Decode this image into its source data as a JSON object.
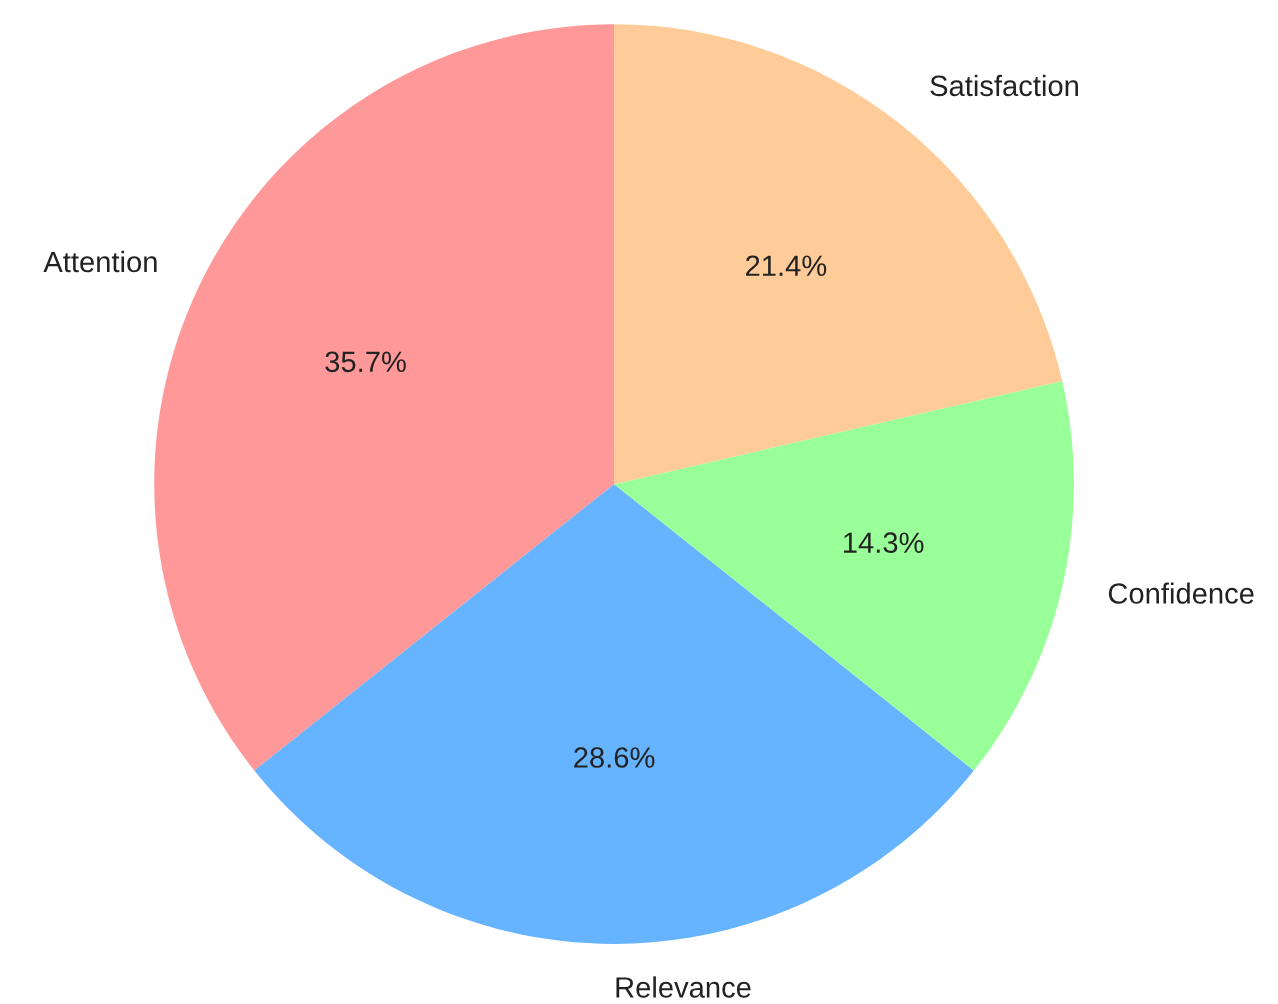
{
  "chart_data": {
    "type": "pie",
    "categories": [
      "Attention",
      "Relevance",
      "Confidence",
      "Satisfaction"
    ],
    "values": [
      35.7,
      28.6,
      14.3,
      21.4
    ],
    "value_labels": [
      "35.7%",
      "28.6%",
      "14.3%",
      "21.4%"
    ],
    "colors": [
      "#ff9999",
      "#66b3ff",
      "#99ff99",
      "#ffcc99"
    ]
  }
}
